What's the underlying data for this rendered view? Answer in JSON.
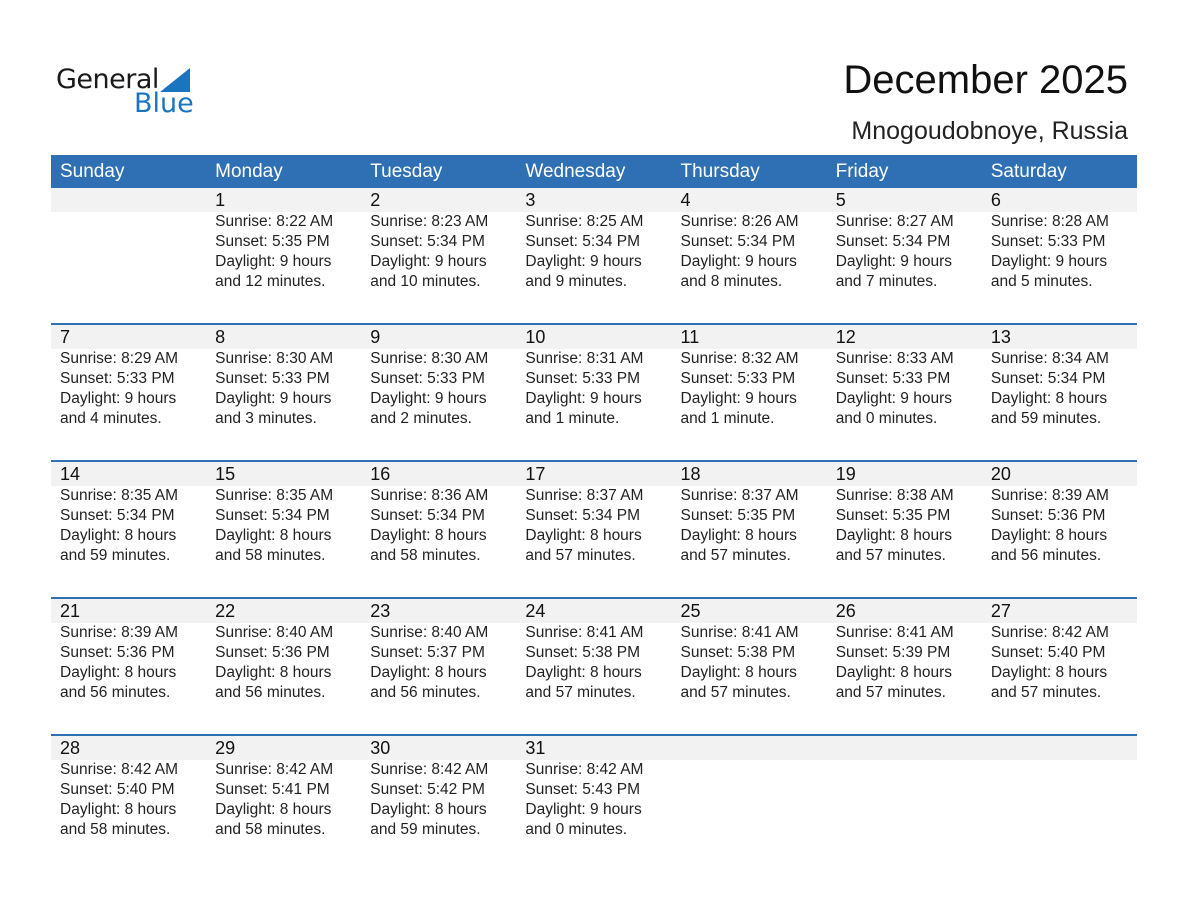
{
  "logo": {
    "line1": "General",
    "line2": "Blue",
    "color": "#1a75c0"
  },
  "title": "December 2025",
  "location": "Mnogoudobnoye, Russia",
  "accent": "#2e70b3",
  "weekdays": [
    "Sunday",
    "Monday",
    "Tuesday",
    "Wednesday",
    "Thursday",
    "Friday",
    "Saturday"
  ],
  "weeks": [
    [
      null,
      {
        "day": "1",
        "sunrise": "Sunrise: 8:22 AM",
        "sunset": "Sunset: 5:35 PM",
        "daylight": "Daylight: 9 hours",
        "minutes": "and 12 minutes."
      },
      {
        "day": "2",
        "sunrise": "Sunrise: 8:23 AM",
        "sunset": "Sunset: 5:34 PM",
        "daylight": "Daylight: 9 hours",
        "minutes": "and 10 minutes."
      },
      {
        "day": "3",
        "sunrise": "Sunrise: 8:25 AM",
        "sunset": "Sunset: 5:34 PM",
        "daylight": "Daylight: 9 hours",
        "minutes": "and 9 minutes."
      },
      {
        "day": "4",
        "sunrise": "Sunrise: 8:26 AM",
        "sunset": "Sunset: 5:34 PM",
        "daylight": "Daylight: 9 hours",
        "minutes": "and 8 minutes."
      },
      {
        "day": "5",
        "sunrise": "Sunrise: 8:27 AM",
        "sunset": "Sunset: 5:34 PM",
        "daylight": "Daylight: 9 hours",
        "minutes": "and 7 minutes."
      },
      {
        "day": "6",
        "sunrise": "Sunrise: 8:28 AM",
        "sunset": "Sunset: 5:33 PM",
        "daylight": "Daylight: 9 hours",
        "minutes": "and 5 minutes."
      }
    ],
    [
      {
        "day": "7",
        "sunrise": "Sunrise: 8:29 AM",
        "sunset": "Sunset: 5:33 PM",
        "daylight": "Daylight: 9 hours",
        "minutes": "and 4 minutes."
      },
      {
        "day": "8",
        "sunrise": "Sunrise: 8:30 AM",
        "sunset": "Sunset: 5:33 PM",
        "daylight": "Daylight: 9 hours",
        "minutes": "and 3 minutes."
      },
      {
        "day": "9",
        "sunrise": "Sunrise: 8:30 AM",
        "sunset": "Sunset: 5:33 PM",
        "daylight": "Daylight: 9 hours",
        "minutes": "and 2 minutes."
      },
      {
        "day": "10",
        "sunrise": "Sunrise: 8:31 AM",
        "sunset": "Sunset: 5:33 PM",
        "daylight": "Daylight: 9 hours",
        "minutes": "and 1 minute."
      },
      {
        "day": "11",
        "sunrise": "Sunrise: 8:32 AM",
        "sunset": "Sunset: 5:33 PM",
        "daylight": "Daylight: 9 hours",
        "minutes": "and 1 minute."
      },
      {
        "day": "12",
        "sunrise": "Sunrise: 8:33 AM",
        "sunset": "Sunset: 5:33 PM",
        "daylight": "Daylight: 9 hours",
        "minutes": "and 0 minutes."
      },
      {
        "day": "13",
        "sunrise": "Sunrise: 8:34 AM",
        "sunset": "Sunset: 5:34 PM",
        "daylight": "Daylight: 8 hours",
        "minutes": "and 59 minutes."
      }
    ],
    [
      {
        "day": "14",
        "sunrise": "Sunrise: 8:35 AM",
        "sunset": "Sunset: 5:34 PM",
        "daylight": "Daylight: 8 hours",
        "minutes": "and 59 minutes."
      },
      {
        "day": "15",
        "sunrise": "Sunrise: 8:35 AM",
        "sunset": "Sunset: 5:34 PM",
        "daylight": "Daylight: 8 hours",
        "minutes": "and 58 minutes."
      },
      {
        "day": "16",
        "sunrise": "Sunrise: 8:36 AM",
        "sunset": "Sunset: 5:34 PM",
        "daylight": "Daylight: 8 hours",
        "minutes": "and 58 minutes."
      },
      {
        "day": "17",
        "sunrise": "Sunrise: 8:37 AM",
        "sunset": "Sunset: 5:34 PM",
        "daylight": "Daylight: 8 hours",
        "minutes": "and 57 minutes."
      },
      {
        "day": "18",
        "sunrise": "Sunrise: 8:37 AM",
        "sunset": "Sunset: 5:35 PM",
        "daylight": "Daylight: 8 hours",
        "minutes": "and 57 minutes."
      },
      {
        "day": "19",
        "sunrise": "Sunrise: 8:38 AM",
        "sunset": "Sunset: 5:35 PM",
        "daylight": "Daylight: 8 hours",
        "minutes": "and 57 minutes."
      },
      {
        "day": "20",
        "sunrise": "Sunrise: 8:39 AM",
        "sunset": "Sunset: 5:36 PM",
        "daylight": "Daylight: 8 hours",
        "minutes": "and 56 minutes."
      }
    ],
    [
      {
        "day": "21",
        "sunrise": "Sunrise: 8:39 AM",
        "sunset": "Sunset: 5:36 PM",
        "daylight": "Daylight: 8 hours",
        "minutes": "and 56 minutes."
      },
      {
        "day": "22",
        "sunrise": "Sunrise: 8:40 AM",
        "sunset": "Sunset: 5:36 PM",
        "daylight": "Daylight: 8 hours",
        "minutes": "and 56 minutes."
      },
      {
        "day": "23",
        "sunrise": "Sunrise: 8:40 AM",
        "sunset": "Sunset: 5:37 PM",
        "daylight": "Daylight: 8 hours",
        "minutes": "and 56 minutes."
      },
      {
        "day": "24",
        "sunrise": "Sunrise: 8:41 AM",
        "sunset": "Sunset: 5:38 PM",
        "daylight": "Daylight: 8 hours",
        "minutes": "and 57 minutes."
      },
      {
        "day": "25",
        "sunrise": "Sunrise: 8:41 AM",
        "sunset": "Sunset: 5:38 PM",
        "daylight": "Daylight: 8 hours",
        "minutes": "and 57 minutes."
      },
      {
        "day": "26",
        "sunrise": "Sunrise: 8:41 AM",
        "sunset": "Sunset: 5:39 PM",
        "daylight": "Daylight: 8 hours",
        "minutes": "and 57 minutes."
      },
      {
        "day": "27",
        "sunrise": "Sunrise: 8:42 AM",
        "sunset": "Sunset: 5:40 PM",
        "daylight": "Daylight: 8 hours",
        "minutes": "and 57 minutes."
      }
    ],
    [
      {
        "day": "28",
        "sunrise": "Sunrise: 8:42 AM",
        "sunset": "Sunset: 5:40 PM",
        "daylight": "Daylight: 8 hours",
        "minutes": "and 58 minutes."
      },
      {
        "day": "29",
        "sunrise": "Sunrise: 8:42 AM",
        "sunset": "Sunset: 5:41 PM",
        "daylight": "Daylight: 8 hours",
        "minutes": "and 58 minutes."
      },
      {
        "day": "30",
        "sunrise": "Sunrise: 8:42 AM",
        "sunset": "Sunset: 5:42 PM",
        "daylight": "Daylight: 8 hours",
        "minutes": "and 59 minutes."
      },
      {
        "day": "31",
        "sunrise": "Sunrise: 8:42 AM",
        "sunset": "Sunset: 5:43 PM",
        "daylight": "Daylight: 9 hours",
        "minutes": "and 0 minutes."
      },
      null,
      null,
      null
    ]
  ]
}
